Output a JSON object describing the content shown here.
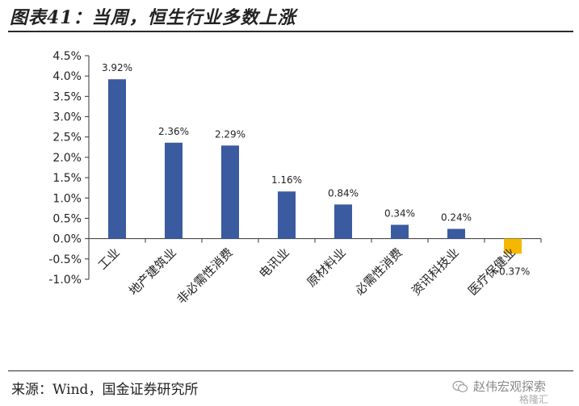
{
  "header": {
    "title": "图表41：当周，恒生行业多数上涨"
  },
  "footer": {
    "source": "来源：Wind，国金证券研究所"
  },
  "watermark": {
    "text": "赵伟宏观探索",
    "icon": "wechat-icon",
    "badge": "格隆汇"
  },
  "chart_data": {
    "type": "bar",
    "title": "",
    "xlabel": "",
    "ylabel": "",
    "categories": [
      "工业",
      "地产建筑业",
      "非必需性消费",
      "电讯业",
      "原材料业",
      "必需性消费",
      "资讯科技业",
      "医疗保健业"
    ],
    "values": [
      3.92,
      2.36,
      2.29,
      1.16,
      0.84,
      0.34,
      0.24,
      -0.37
    ],
    "data_labels": [
      "3.92%",
      "2.36%",
      "2.29%",
      "1.16%",
      "0.84%",
      "0.34%",
      "0.24%",
      "-0.37%"
    ],
    "ylim": [
      -1.0,
      4.5
    ],
    "yticks": [
      4.5,
      4.0,
      3.5,
      3.0,
      2.5,
      2.0,
      1.5,
      1.0,
      0.5,
      0.0,
      -0.5,
      -1.0
    ],
    "ytick_labels": [
      "4.5%",
      "4.0%",
      "3.5%",
      "3.0%",
      "2.5%",
      "2.0%",
      "1.5%",
      "1.0%",
      "0.5%",
      "0.0%",
      "-0.5%",
      "-1.0%"
    ],
    "grid": false,
    "colors": {
      "positive": "#3A5BA0",
      "negative": "#F5B800"
    }
  }
}
